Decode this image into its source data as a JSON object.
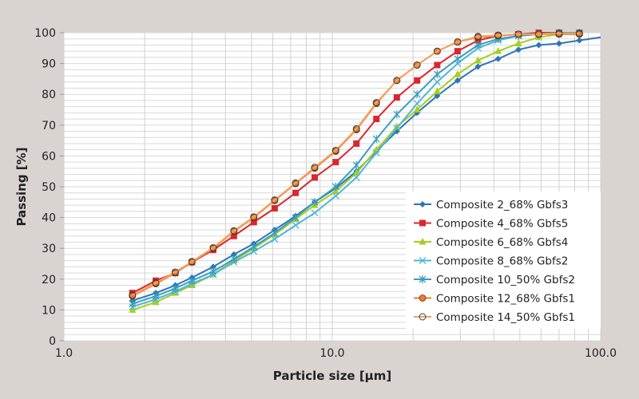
{
  "chart_data": {
    "type": "line",
    "title": "",
    "xlabel": "Particle size [µm]",
    "ylabel": "Passing [%]",
    "xscale": "log",
    "xlim": [
      1.0,
      100.0
    ],
    "ylim": [
      0,
      100
    ],
    "xticks": [
      "1.0",
      "10.0",
      "100.0"
    ],
    "yticks": [
      "0",
      "10",
      "20",
      "30",
      "40",
      "50",
      "60",
      "70",
      "80",
      "90",
      "100"
    ],
    "grid": true,
    "legend_position": "right",
    "x": [
      1.8,
      2.2,
      2.6,
      3.0,
      3.6,
      4.3,
      5.1,
      6.1,
      7.3,
      8.6,
      10.3,
      12.3,
      14.6,
      17.4,
      20.7,
      24.6,
      29.3,
      34.9,
      41.5,
      49.4,
      58.8,
      70,
      83.3
    ],
    "series": [
      {
        "name": "Composite 2_68% Gbfs3",
        "color": "#2e75b6",
        "marker": "diamond",
        "values": [
          13,
          15.5,
          18,
          20.5,
          24,
          28,
          31.5,
          36,
          40.5,
          45,
          49.5,
          55,
          61.5,
          68,
          74,
          79.5,
          84.5,
          89,
          91.5,
          94.5,
          96,
          96.5,
          97.5
        ]
      },
      {
        "name": "Composite 4_68% Gbfs5",
        "color": "#d9272e",
        "marker": "square",
        "values": [
          15.5,
          19.5,
          22,
          25.5,
          29.5,
          34,
          38.5,
          43,
          48,
          53,
          58,
          64,
          72,
          79,
          84.5,
          89.5,
          94,
          97.5,
          99,
          99.5,
          100,
          100,
          100
        ]
      },
      {
        "name": "Composite 6_68% Gbfs4",
        "color": "#a6ce1e",
        "marker": "triangle",
        "values": [
          10,
          12.5,
          15.5,
          18,
          21.5,
          26,
          30,
          34.5,
          39.5,
          44,
          48.5,
          54.5,
          62,
          69.5,
          75,
          81,
          86.5,
          91,
          94,
          96.5,
          98.5,
          99.5,
          100
        ]
      },
      {
        "name": "Composite 8_68% Gbfs2",
        "color": "#4fb6d6",
        "marker": "x",
        "values": [
          11,
          13.5,
          16,
          18.5,
          21.5,
          25.5,
          29,
          33,
          37.5,
          41.5,
          47,
          53,
          61,
          69,
          77,
          84,
          90,
          95,
          97.5,
          99,
          99.5,
          100,
          100
        ]
      },
      {
        "name": "Composite 10_50% Gbfs2",
        "color": "#3a9ebf",
        "marker": "star",
        "values": [
          12,
          14.5,
          17,
          19.5,
          22.5,
          26.5,
          30.5,
          35,
          40,
          45,
          50,
          57,
          65.5,
          73.5,
          80,
          86.5,
          91.5,
          96,
          98,
          99,
          99.5,
          100,
          100
        ]
      },
      {
        "name": "Composite 12_68% Gbfs1",
        "color": "#ed7d31",
        "marker": "circle",
        "values": [
          14.5,
          18.5,
          22,
          25.5,
          30,
          35.5,
          40,
          45.5,
          51,
          56,
          61.5,
          68.5,
          77,
          84.5,
          89.5,
          94,
          97,
          98.5,
          99,
          99.5,
          99.5,
          99.5,
          99.5
        ]
      },
      {
        "name": "Composite 14_50% Gbfs1",
        "color": "#f4a460",
        "marker": "open-circle",
        "values": [
          14.8,
          18.8,
          22.3,
          25.7,
          30.2,
          35.7,
          40.2,
          45.7,
          51.2,
          56.3,
          61.8,
          68.8,
          77.3,
          84.5,
          89.5,
          94,
          97,
          98.8,
          99.2,
          99.5,
          99.5,
          99.8,
          99.8
        ]
      }
    ]
  }
}
